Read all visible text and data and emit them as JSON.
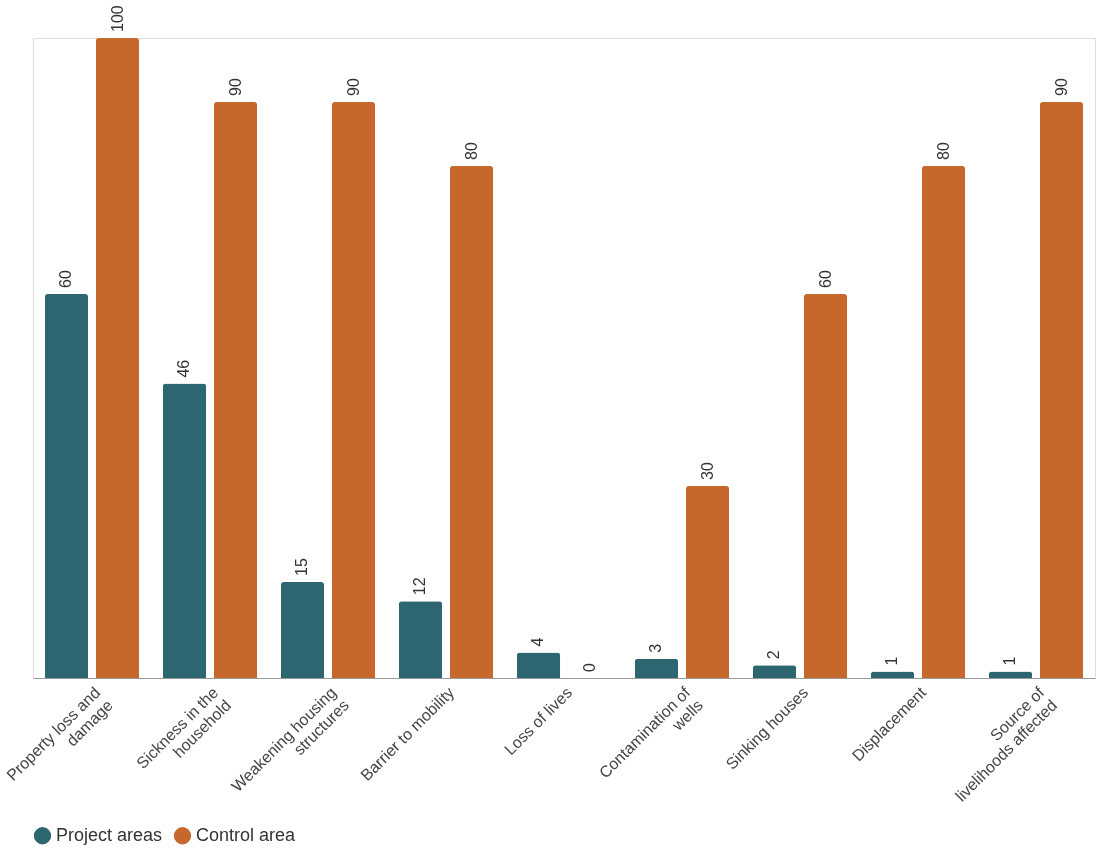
{
  "chart_data": {
    "type": "bar",
    "categories": [
      "Property loss and damage",
      "Sickness in the household",
      "Weakening housing structures",
      "Barrier to mobility",
      "Loss of lives",
      "Contamination of wells",
      "Sinking houses",
      "Displacement",
      "Source of livelihoods affected"
    ],
    "series": [
      {
        "name": "Project areas",
        "color": "#2d6670",
        "values": [
          60,
          46,
          15,
          12,
          4,
          3,
          2,
          1,
          1
        ]
      },
      {
        "name": "Control area",
        "color": "#c6682b",
        "values": [
          100,
          90,
          90,
          80,
          0,
          30,
          60,
          80,
          90
        ]
      }
    ],
    "data_labels": true,
    "legend": "bottom"
  }
}
